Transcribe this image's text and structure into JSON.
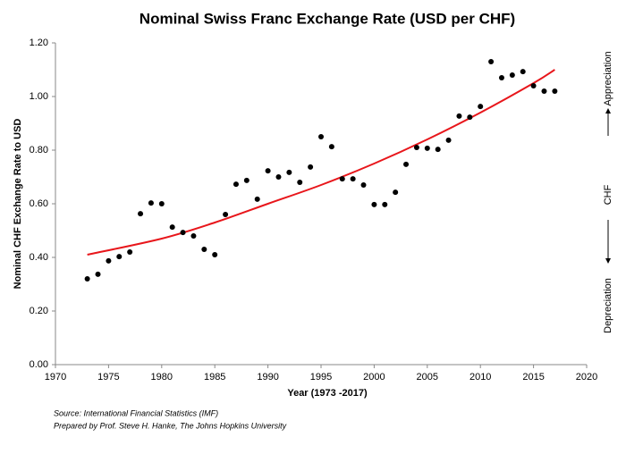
{
  "chart_data": {
    "type": "scatter",
    "title": "Nominal Swiss Franc Exchange Rate (USD per CHF)",
    "x_label": "Year (1973 -2017)",
    "y_label": "Nominal CHF Exchange Rate to USD",
    "x": [
      1973,
      1974,
      1975,
      1976,
      1977,
      1978,
      1979,
      1980,
      1981,
      1982,
      1983,
      1984,
      1985,
      1986,
      1987,
      1988,
      1989,
      1990,
      1991,
      1992,
      1993,
      1994,
      1995,
      1996,
      1997,
      1998,
      1999,
      2000,
      2001,
      2002,
      2003,
      2004,
      2005,
      2006,
      2007,
      2008,
      2009,
      2010,
      2011,
      2012,
      2013,
      2014,
      2015,
      2016,
      2017
    ],
    "series": [
      {
        "color": "#000000",
        "values": [
          0.32,
          0.337,
          0.387,
          0.403,
          0.42,
          0.563,
          0.603,
          0.6,
          0.513,
          0.493,
          0.48,
          0.43,
          0.41,
          0.56,
          0.673,
          0.687,
          0.617,
          0.723,
          0.7,
          0.717,
          0.68,
          0.737,
          0.85,
          0.813,
          0.693,
          0.693,
          0.67,
          0.597,
          0.597,
          0.643,
          0.747,
          0.81,
          0.807,
          0.803,
          0.837,
          0.927,
          0.923,
          0.963,
          1.13,
          1.07,
          1.08,
          1.093,
          1.04,
          1.02,
          1.02
        ]
      }
    ],
    "trend": {
      "color": "#e8161b",
      "x": [
        1973,
        1980,
        1985,
        1990,
        1995,
        2000,
        2005,
        2010,
        2015,
        2017
      ],
      "values": [
        0.41,
        0.47,
        0.53,
        0.6,
        0.67,
        0.75,
        0.84,
        0.94,
        1.05,
        1.1
      ]
    },
    "xlim": [
      1970,
      2020
    ],
    "xticks": [
      1970,
      1975,
      1980,
      1985,
      1990,
      1995,
      2000,
      2005,
      2010,
      2015,
      2020
    ],
    "ylim": [
      0,
      1.2
    ],
    "yticks": [
      {
        "value": 0,
        "label": "0.00"
      },
      {
        "value": 0.2,
        "label": "0.20"
      },
      {
        "value": 0.4,
        "label": "0.40"
      },
      {
        "value": 0.6,
        "label": "0.60"
      },
      {
        "value": 0.8,
        "label": "0.80"
      },
      {
        "value": 1,
        "label": "1.00"
      },
      {
        "value": 1.2,
        "label": "1.20"
      }
    ],
    "annotations": {
      "top": "Appreciation",
      "middle": "CHF",
      "bottom": "Depreciation"
    },
    "source": [
      "Source: International Financial Statistics (IMF)",
      "Prepared by Prof. Steve H. Hanke, The Johns Hopkins University"
    ]
  }
}
